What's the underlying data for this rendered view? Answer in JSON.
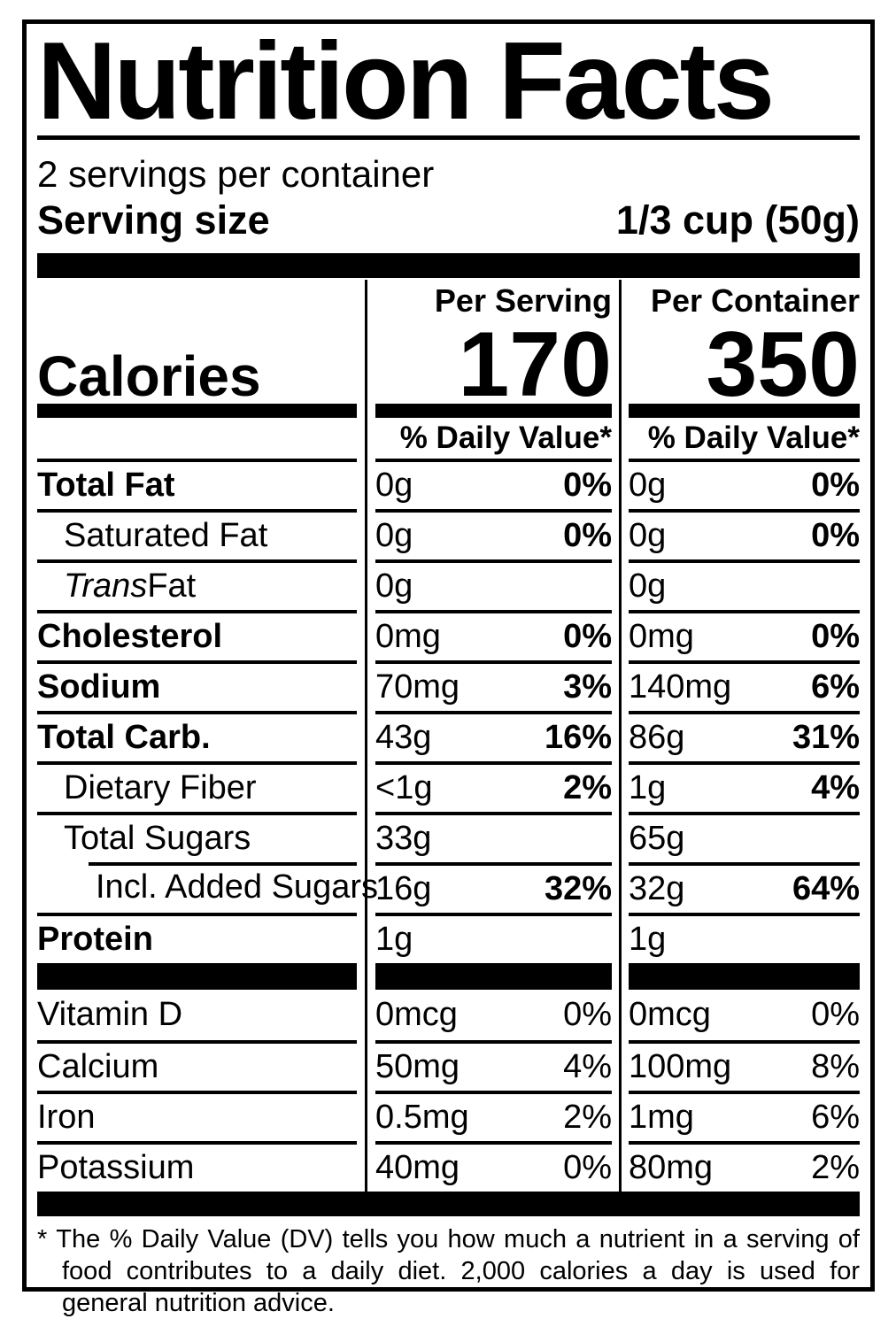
{
  "colors": {
    "text": "#000000",
    "background": "#ffffff"
  },
  "title": "Nutrition Facts",
  "servings_per_container": "2 servings per container",
  "serving_size": {
    "label": "Serving size",
    "value": "1/3 cup (50g)"
  },
  "columns": {
    "per_serving": "Per Serving",
    "per_container": "Per Container",
    "daily_value": "% Daily Value*"
  },
  "calories": {
    "label": "Calories",
    "per_serving": "170",
    "per_container": "350"
  },
  "nutrients": [
    {
      "name": "Total Fat",
      "bold": true,
      "indent": 0,
      "serving": {
        "amount": "0g",
        "dv": "0%"
      },
      "container": {
        "amount": "0g",
        "dv": "0%"
      }
    },
    {
      "name": "Saturated Fat",
      "bold": false,
      "indent": 1,
      "serving": {
        "amount": "0g",
        "dv": "0%"
      },
      "container": {
        "amount": "0g",
        "dv": "0%"
      }
    },
    {
      "name_italic": "Trans",
      "name": " Fat",
      "bold": false,
      "indent": 1,
      "serving": {
        "amount": "0g",
        "dv": ""
      },
      "container": {
        "amount": "0g",
        "dv": ""
      }
    },
    {
      "name": "Cholesterol",
      "bold": true,
      "indent": 0,
      "serving": {
        "amount": "0mg",
        "dv": "0%"
      },
      "container": {
        "amount": "0mg",
        "dv": "0%"
      }
    },
    {
      "name": "Sodium",
      "bold": true,
      "indent": 0,
      "serving": {
        "amount": "70mg",
        "dv": "3%"
      },
      "container": {
        "amount": "140mg",
        "dv": "6%"
      }
    },
    {
      "name": "Total Carb.",
      "bold": true,
      "indent": 0,
      "serving": {
        "amount": "43g",
        "dv": "16%"
      },
      "container": {
        "amount": "86g",
        "dv": "31%"
      }
    },
    {
      "name": "Dietary Fiber",
      "bold": false,
      "indent": 1,
      "serving": {
        "amount": "<1g",
        "dv": "2%"
      },
      "container": {
        "amount": "1g",
        "dv": "4%"
      }
    },
    {
      "name": "Total Sugars",
      "bold": false,
      "indent": 1,
      "serving": {
        "amount": "33g",
        "dv": ""
      },
      "container": {
        "amount": "65g",
        "dv": ""
      }
    },
    {
      "name": "Incl. Added Sugars",
      "bold": false,
      "indent": 2,
      "sep_indent": true,
      "serving": {
        "amount": "16g",
        "dv": "32%"
      },
      "container": {
        "amount": "32g",
        "dv": "64%"
      }
    },
    {
      "name": "Protein",
      "bold": true,
      "indent": 0,
      "serving": {
        "amount": "1g",
        "dv": ""
      },
      "container": {
        "amount": "1g",
        "dv": ""
      }
    }
  ],
  "micronutrients": [
    {
      "name": "Vitamin D",
      "serving": {
        "amount": "0mcg",
        "dv": "0%"
      },
      "container": {
        "amount": "0mcg",
        "dv": "0%"
      }
    },
    {
      "name": "Calcium",
      "serving": {
        "amount": "50mg",
        "dv": "4%"
      },
      "container": {
        "amount": "100mg",
        "dv": "8%"
      }
    },
    {
      "name": "Iron",
      "serving": {
        "amount": "0.5mg",
        "dv": "2%"
      },
      "container": {
        "amount": "1mg",
        "dv": "6%"
      }
    },
    {
      "name": "Potassium",
      "serving": {
        "amount": "40mg",
        "dv": "0%"
      },
      "container": {
        "amount": "80mg",
        "dv": "2%"
      }
    }
  ],
  "footnote": {
    "marker": "*",
    "text": "The % Daily Value (DV) tells you how much a nutrient in a serving of food contributes to a daily diet. 2,000 calories a day is used for general nutrition advice."
  }
}
